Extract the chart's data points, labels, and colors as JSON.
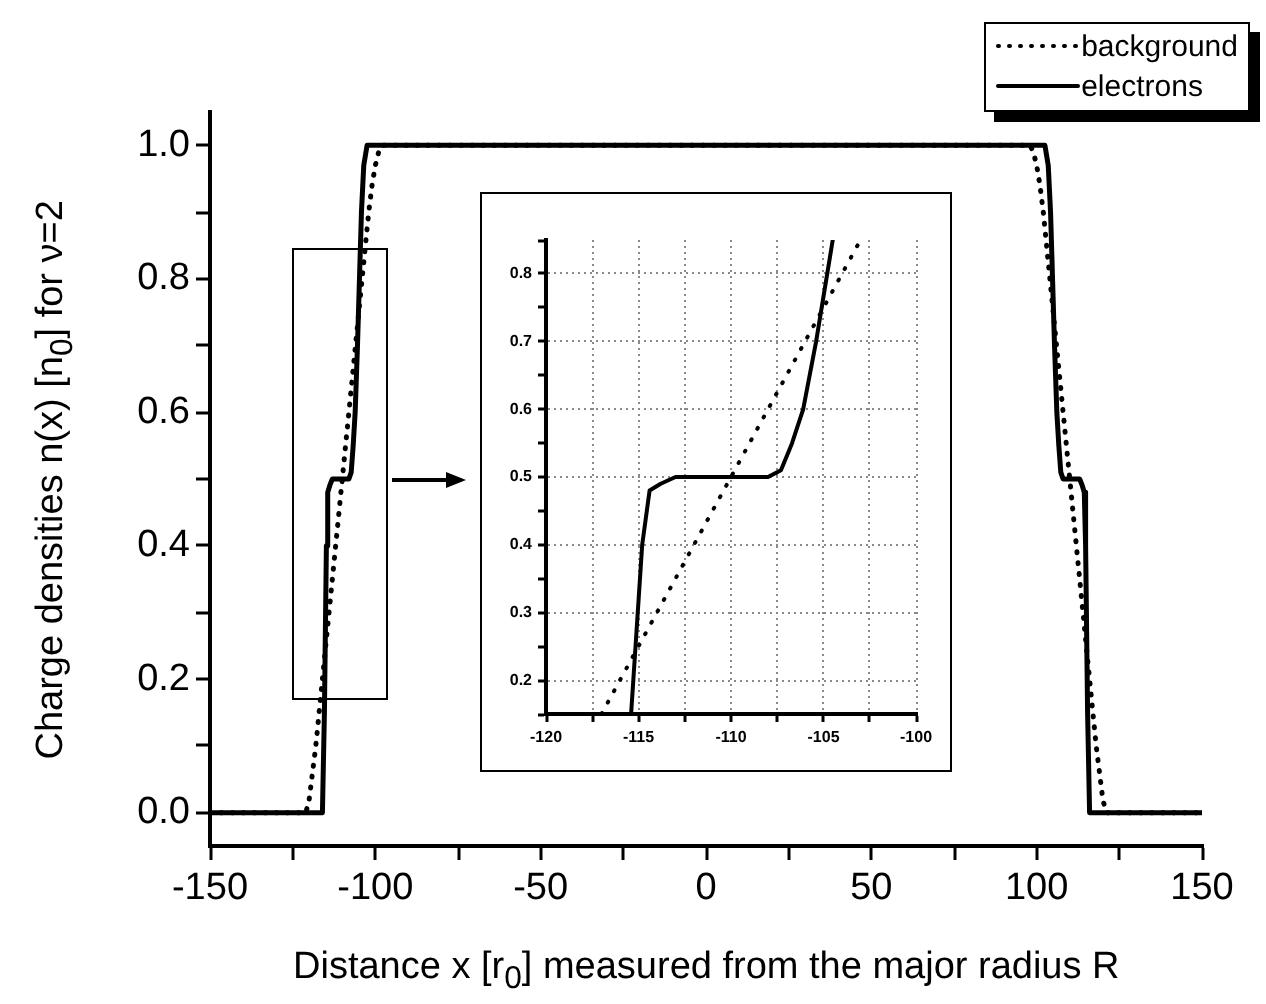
{
  "chart_data": [
    {
      "type": "line",
      "xlabel": "Distance x [r$_{0}$] measured from the major radius R",
      "ylabel": "Charge densities n(x) [n$_{0}$] for ν=2",
      "xlim": [
        -150,
        150
      ],
      "xticks": [
        -150,
        {
          "value": -125,
          "label": null
        },
        -100,
        {
          "value": -75,
          "label": null
        },
        -50,
        {
          "value": -25,
          "label": null
        },
        0,
        {
          "value": 25,
          "label": null
        },
        50,
        {
          "value": 75,
          "label": null
        },
        100,
        {
          "value": 125,
          "label": null
        },
        150
      ],
      "ylim": [
        -0.05,
        1.05
      ],
      "yticks": [
        {
          "value": 0,
          "label": "0.0"
        },
        {
          "value": 0.1,
          "label": null
        },
        {
          "value": 0.2,
          "label": "0.2"
        },
        {
          "value": 0.3,
          "label": null
        },
        {
          "value": 0.4,
          "label": "0.4"
        },
        {
          "value": 0.5,
          "label": null
        },
        {
          "value": 0.6,
          "label": "0.6"
        },
        {
          "value": 0.7,
          "label": null
        },
        {
          "value": 0.8,
          "label": "0.8"
        },
        {
          "value": 0.9,
          "label": null
        },
        {
          "value": 1,
          "label": "1.0"
        }
      ],
      "legend": "top right",
      "marker": "none",
      "series": [
        {
          "name": "background",
          "color": "#000000",
          "line_style": "dotted",
          "x": [
            -150,
            -121,
            -120,
            -119,
            -118,
            -117,
            -110,
            -103,
            -102,
            -101,
            -100,
            -99,
            -98,
            98,
            99,
            100,
            101,
            102,
            103,
            110,
            117,
            118,
            119,
            120,
            121,
            150
          ],
          "values": [
            0,
            0,
            0.02,
            0.06,
            0.1,
            0.15,
            0.5,
            0.85,
            0.9,
            0.94,
            0.97,
            0.99,
            1,
            1,
            0.99,
            0.97,
            0.94,
            0.9,
            0.85,
            0.5,
            0.15,
            0.1,
            0.06,
            0.02,
            0,
            0
          ]
        },
        {
          "name": "electrons",
          "color": "#000000",
          "line_style": "solid",
          "x": [
            -150,
            -116,
            -115.4,
            -114.8,
            -114.4,
            -113.8,
            -113,
            -108,
            -107.3,
            -106.7,
            -106.1,
            -105.4,
            -104.8,
            -104.2,
            -103.5,
            -102.5,
            102.5,
            103.5,
            104.2,
            104.8,
            105.4,
            106.1,
            106.7,
            107.3,
            108,
            113,
            113.8,
            114.4,
            114.8,
            115.4,
            116,
            150
          ],
          "values": [
            0,
            0,
            0.15,
            0.4,
            0.48,
            0.49,
            0.5,
            0.5,
            0.51,
            0.55,
            0.6,
            0.7,
            0.8,
            0.9,
            0.97,
            1,
            1,
            0.97,
            0.9,
            0.8,
            0.7,
            0.6,
            0.55,
            0.51,
            0.5,
            0.5,
            0.49,
            0.48,
            0.4,
            0.15,
            0,
            0
          ]
        }
      ]
    },
    {
      "type": "line",
      "xlim": [
        -120,
        -100
      ],
      "xticks": [
        -120,
        {
          "value": -117.5,
          "label": null
        },
        -115,
        {
          "value": -112.5,
          "label": null
        },
        -110,
        {
          "value": -107.5,
          "label": null
        },
        -105,
        {
          "value": -102.5,
          "label": null
        },
        -100
      ],
      "ylim": [
        0.15,
        0.85
      ],
      "yticks": [
        {
          "value": 0.15,
          "label": null
        },
        0.2,
        {
          "value": 0.25,
          "label": null
        },
        0.3,
        {
          "value": 0.35,
          "label": null
        },
        0.4,
        {
          "value": 0.45,
          "label": null
        },
        0.5,
        {
          "value": 0.55,
          "label": null
        },
        0.6,
        {
          "value": 0.65,
          "label": null
        },
        0.7,
        {
          "value": 0.75,
          "label": null
        },
        0.8,
        {
          "value": 0.85,
          "label": null
        }
      ],
      "grid": true,
      "marker": "none",
      "series": [
        {
          "color": "#000000",
          "line_style": "dotted",
          "x": [
            -117,
            -110,
            -103
          ],
          "values": [
            0.15,
            0.5,
            0.85
          ]
        },
        {
          "color": "#000000",
          "line_style": "solid",
          "x": [
            -115.4,
            -114.8,
            -114.4,
            -113.8,
            -113,
            -108,
            -107.3,
            -106.7,
            -106.1,
            -105.4,
            -104.8,
            -104.5
          ],
          "values": [
            0.15,
            0.4,
            0.48,
            0.49,
            0.5,
            0.5,
            0.51,
            0.55,
            0.6,
            0.7,
            0.8,
            0.85
          ]
        }
      ]
    }
  ]
}
